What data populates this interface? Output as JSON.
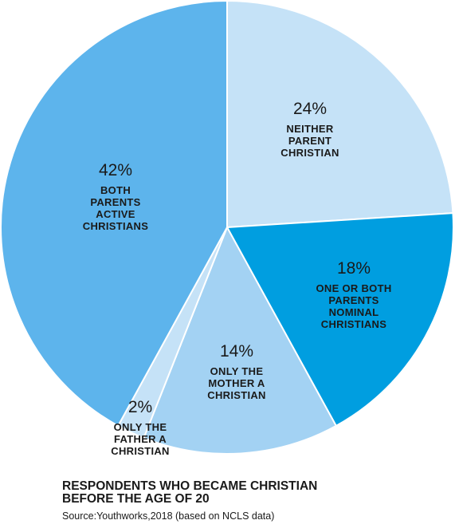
{
  "chart_data": {
    "type": "pie",
    "title": "RESPONDENTS WHO BECAME CHRISTIAN BEFORE THE AGE OF 20",
    "title_lines": [
      "RESPONDENTS WHO BECAME CHRISTIAN",
      "BEFORE THE AGE OF 20"
    ],
    "source": "Source:Youthworks,2018 (based on NCLS data)",
    "slices": [
      {
        "value": 24,
        "pct_label": "24%",
        "label_lines": [
          "NEITHER",
          "PARENT",
          "CHRISTIAN"
        ],
        "color": "#c5e2f7"
      },
      {
        "value": 18,
        "pct_label": "18%",
        "label_lines": [
          "ONE OR BOTH",
          "PARENTS",
          "NOMINAL",
          "CHRISTIANS"
        ],
        "color": "#009ee0"
      },
      {
        "value": 14,
        "pct_label": "14%",
        "label_lines": [
          "ONLY THE",
          "MOTHER A",
          "CHRISTIAN"
        ],
        "color": "#a3d2f3"
      },
      {
        "value": 2,
        "pct_label": "2%",
        "label_lines": [
          "ONLY THE",
          "FATHER A",
          "CHRISTIAN"
        ],
        "color": "#c5e2f7"
      },
      {
        "value": 42,
        "pct_label": "42%",
        "label_lines": [
          "BOTH",
          "PARENTS",
          "ACTIVE",
          "CHRISTIANS"
        ],
        "color": "#5db4ec"
      }
    ],
    "legend": "none"
  }
}
